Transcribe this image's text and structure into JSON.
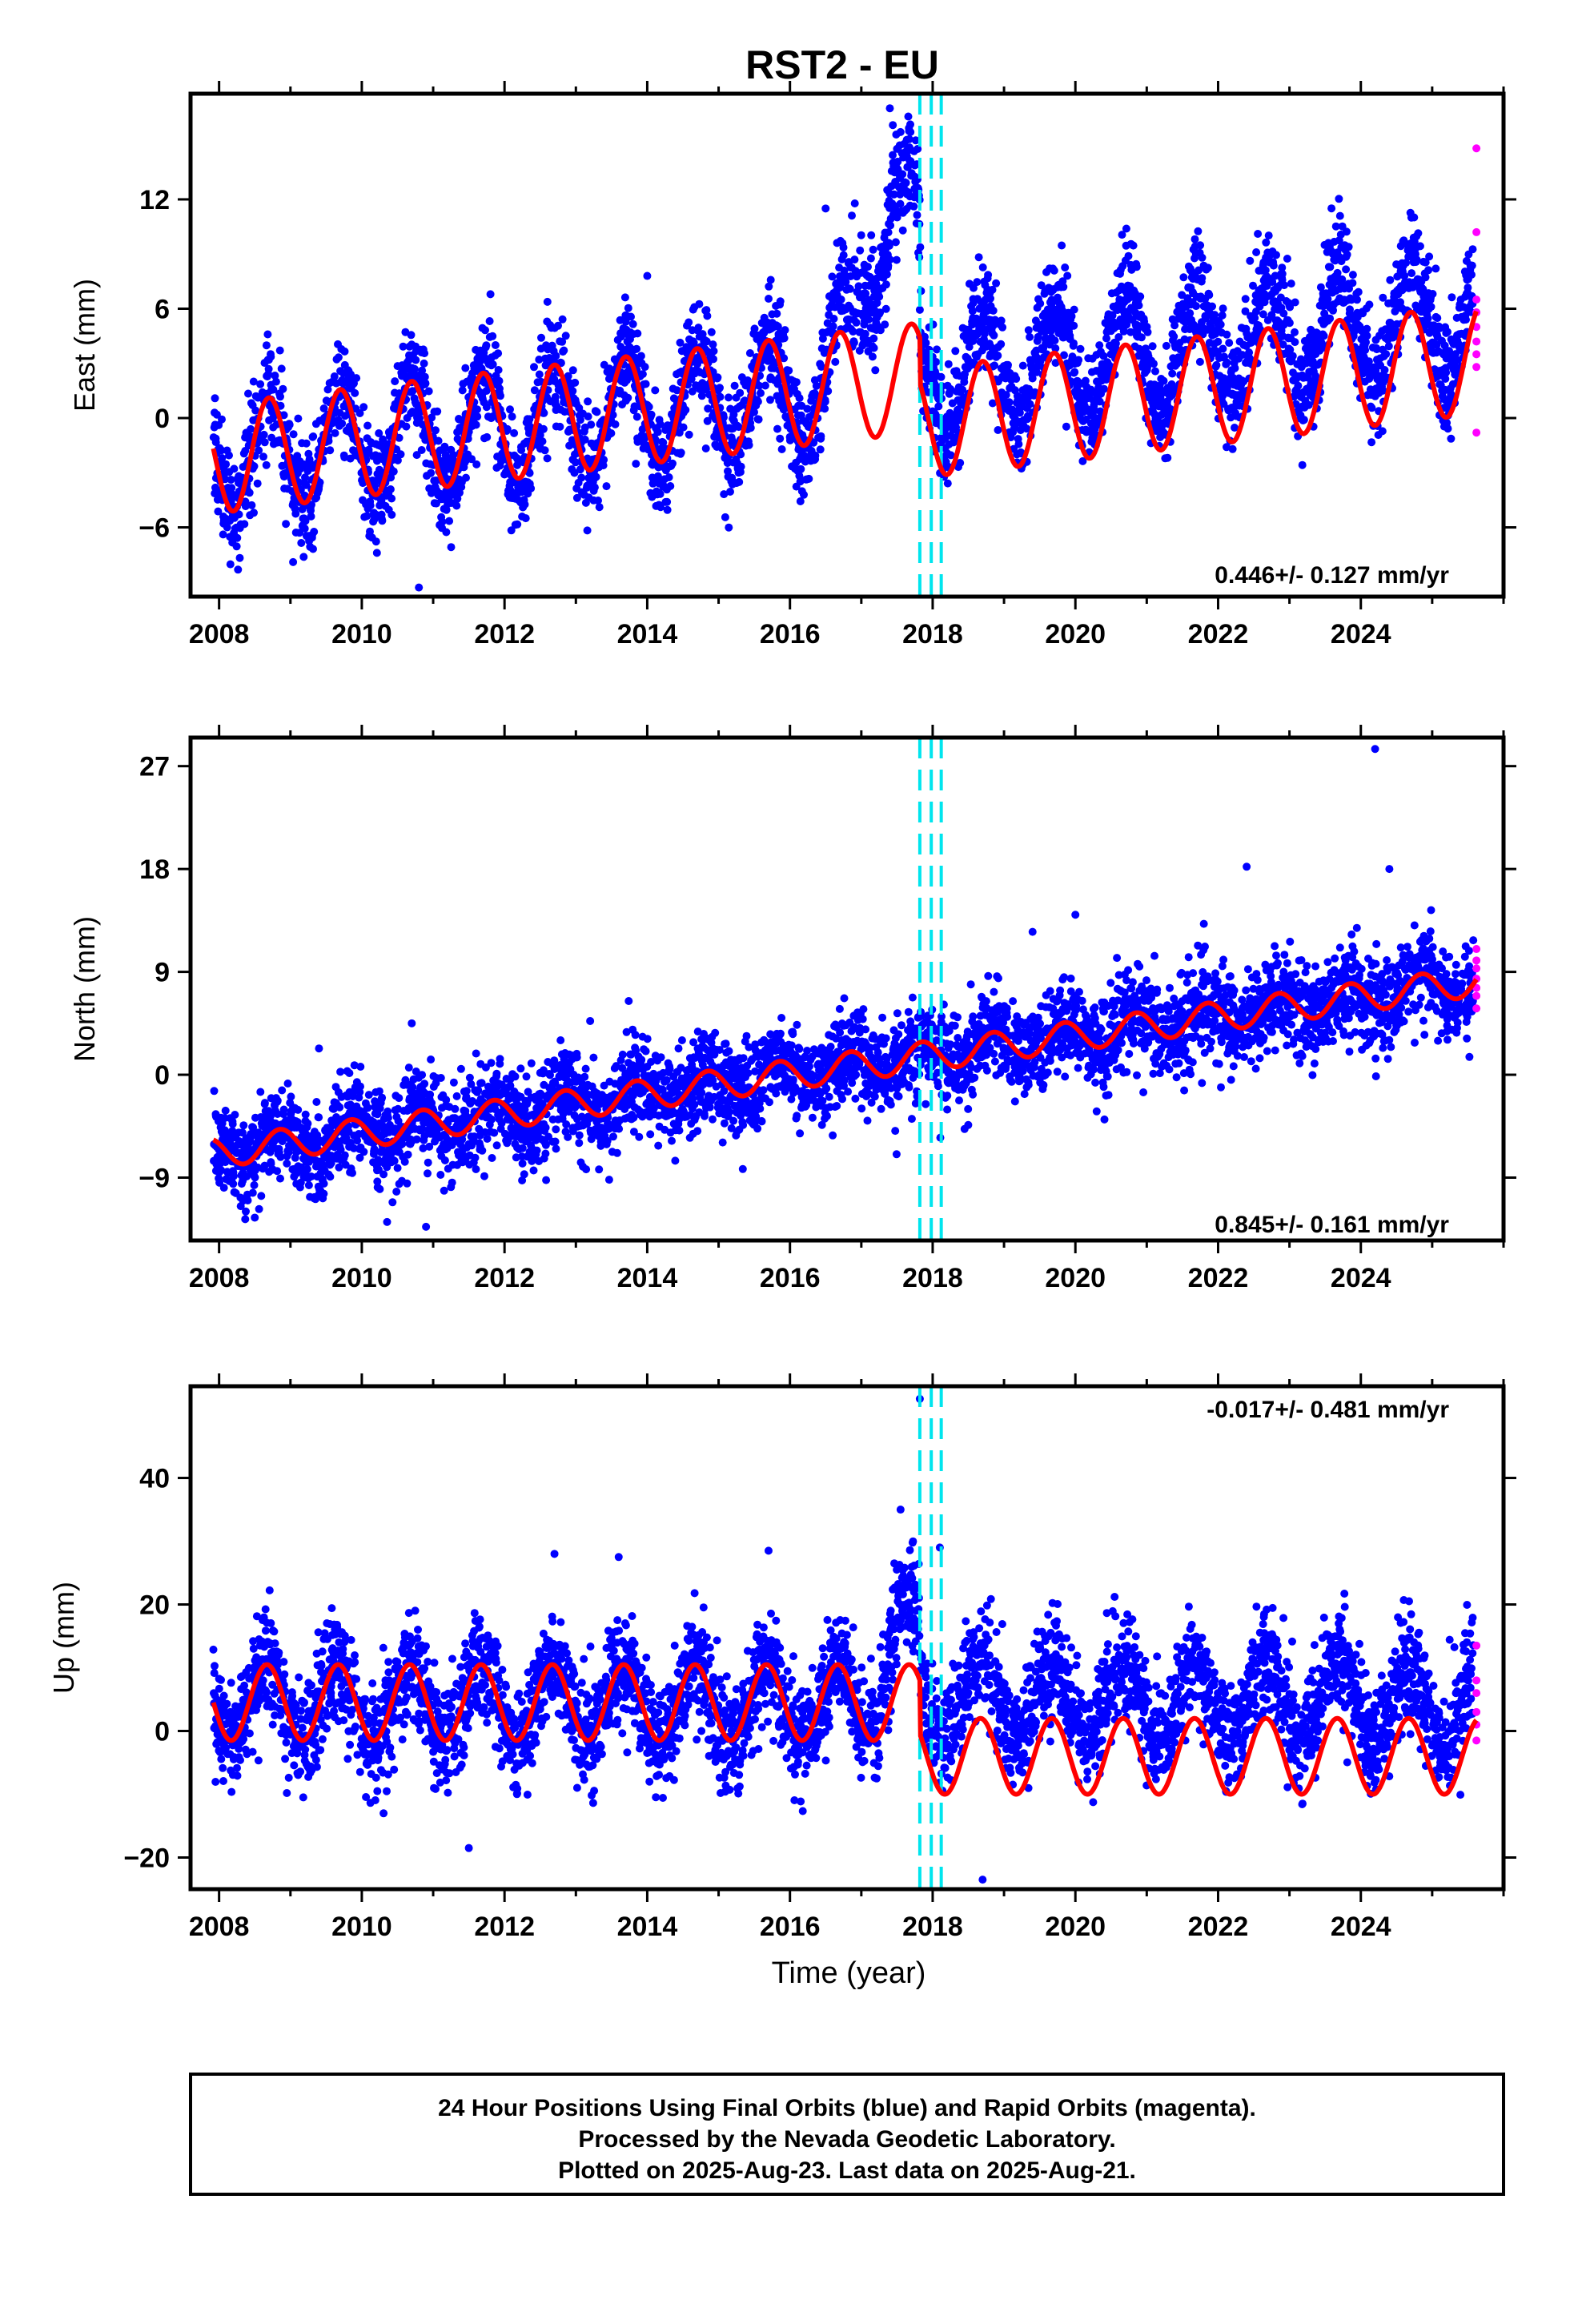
{
  "figure": {
    "title": "RST2 - EU",
    "xlabel": "Time (year)",
    "footer": [
      "24 Hour Positions Using Final Orbits (blue) and Rapid Orbits (magenta).",
      "Processed by the Nevada Geodetic Laboratory.",
      "Plotted on 2025-Aug-23. Last data on 2025-Aug-21."
    ],
    "colors": {
      "final_orbits": "#0000ff",
      "rapid_orbits": "#ff00ff",
      "model_fit": "#ff0000",
      "steps": "#00e5ee"
    }
  },
  "chart_data": [
    {
      "type": "scatter",
      "component": "east",
      "ylabel": "East (mm)",
      "rate_label": "0.446+/- 0.127 mm/yr",
      "xlim": [
        2007.6,
        2026.0
      ],
      "ylim": [
        -9.8,
        17.8
      ],
      "xticks": [
        2008,
        2010,
        2012,
        2014,
        2016,
        2018,
        2020,
        2022,
        2024
      ],
      "xtick_labels": [
        "2008",
        "2010",
        "2012",
        "2014",
        "2016",
        "2018",
        "2020",
        "2022",
        "2024"
      ],
      "yticks": [
        -6,
        0,
        6,
        12
      ],
      "ytick_labels": [
        "−6",
        "0",
        "6",
        "12"
      ],
      "steps": [
        2017.82,
        2017.98,
        2018.12
      ],
      "series": [
        {
          "role": "final_orbits",
          "x_range": [
            2007.92,
            2025.58
          ],
          "trend_start": -2.2,
          "trend_rate": 0.45,
          "annual_amplitude": 3.0,
          "annual_phase": 0.45,
          "scatter_sd": 1.5,
          "anomaly": {
            "x_range": [
              2016.5,
              2017.82
            ],
            "peak_x": 2017.45,
            "peak_add": 10.0
          },
          "outliers": [
            [
              2010.8,
              -9.3
            ],
            [
              2014.0,
              7.8
            ],
            [
              2016.5,
              11.5
            ],
            [
              2017.4,
              17.0
            ],
            [
              2025.05,
              8.2
            ]
          ]
        },
        {
          "role": "rapid_orbits",
          "x": 2025.62,
          "values": [
            14.8,
            10.2,
            6.5,
            5.8,
            5.0,
            4.2,
            3.5,
            2.8,
            -0.8
          ]
        },
        {
          "role": "model_fit",
          "x_range": [
            2007.92,
            2025.62
          ],
          "trend_start": -2.2,
          "trend_rate": 0.45,
          "annual_amplitude": 3.0,
          "annual_phase": 0.45,
          "step_offsets": [
            -2.5,
            0.0,
            0.0
          ]
        }
      ]
    },
    {
      "type": "scatter",
      "component": "north",
      "ylabel": "North (mm)",
      "rate_label": "0.845+/- 0.161 mm/yr",
      "xlim": [
        2007.6,
        2026.0
      ],
      "ylim": [
        -14.5,
        29.5
      ],
      "xticks": [
        2008,
        2010,
        2012,
        2014,
        2016,
        2018,
        2020,
        2022,
        2024
      ],
      "xtick_labels": [
        "2008",
        "2010",
        "2012",
        "2014",
        "2016",
        "2018",
        "2020",
        "2022",
        "2024"
      ],
      "yticks": [
        -9,
        0,
        9,
        18,
        27
      ],
      "ytick_labels": [
        "−9",
        "0",
        "9",
        "18",
        "27"
      ],
      "steps": [
        2017.82,
        2017.98,
        2018.12
      ],
      "series": [
        {
          "role": "final_orbits",
          "x_range": [
            2007.92,
            2025.58
          ],
          "trend_start": -6.8,
          "trend_rate": 0.85,
          "annual_amplitude": 1.3,
          "annual_phase": 0.6,
          "scatter_sd": 2.0,
          "outliers": [
            [
              2008.5,
              -12.5
            ],
            [
              2009.4,
              2.3
            ],
            [
              2010.7,
              4.5
            ],
            [
              2010.9,
              -13.3
            ],
            [
              2013.2,
              4.7
            ],
            [
              2019.4,
              12.5
            ],
            [
              2020.0,
              14.0
            ],
            [
              2021.8,
              13.2
            ],
            [
              2022.4,
              18.2
            ],
            [
              2024.2,
              28.5
            ],
            [
              2024.4,
              18.0
            ]
          ]
        },
        {
          "role": "rapid_orbits",
          "x": 2025.62,
          "values": [
            11.0,
            10.0,
            9.3,
            8.4,
            7.6,
            6.9,
            5.8
          ]
        },
        {
          "role": "model_fit",
          "x_range": [
            2007.92,
            2025.62
          ],
          "trend_start": -6.8,
          "trend_rate": 0.85,
          "annual_amplitude": 1.3,
          "annual_phase": 0.6,
          "step_offsets": [
            0.0,
            0.0,
            0.0
          ]
        }
      ]
    },
    {
      "type": "scatter",
      "component": "up",
      "ylabel": "Up (mm)",
      "rate_label": "-0.017+/- 0.481 mm/yr",
      "xlim": [
        2007.6,
        2026.0
      ],
      "ylim": [
        -25.0,
        54.5
      ],
      "xticks": [
        2008,
        2010,
        2012,
        2014,
        2016,
        2018,
        2020,
        2022,
        2024
      ],
      "xtick_labels": [
        "2008",
        "2010",
        "2012",
        "2014",
        "2016",
        "2018",
        "2020",
        "2022",
        "2024"
      ],
      "yticks": [
        -20,
        0,
        20,
        40
      ],
      "ytick_labels": [
        "−20",
        "0",
        "20",
        "40"
      ],
      "steps": [
        2017.82,
        2017.98,
        2018.12
      ],
      "series": [
        {
          "role": "final_orbits",
          "x_range": [
            2007.92,
            2025.58
          ],
          "trend_start": 4.5,
          "trend_rate": 0.0,
          "annual_amplitude": 6.0,
          "annual_phase": 0.42,
          "scatter_sd": 4.2,
          "anomaly": {
            "x_range": [
              2017.0,
              2017.82
            ],
            "peak_x": 2017.55,
            "peak_add": 12.0
          },
          "outliers": [
            [
              2011.5,
              -18.5
            ],
            [
              2012.7,
              28.0
            ],
            [
              2013.6,
              27.5
            ],
            [
              2015.7,
              28.5
            ],
            [
              2017.55,
              35.0
            ],
            [
              2017.82,
              52.5
            ],
            [
              2018.1,
              29.0
            ],
            [
              2018.7,
              -23.5
            ]
          ]
        },
        {
          "role": "rapid_orbits",
          "x": 2025.62,
          "values": [
            13.5,
            8.0,
            6.0,
            3.0,
            1.0,
            -1.5
          ]
        },
        {
          "role": "model_fit",
          "x_range": [
            2007.92,
            2025.62
          ],
          "trend_start": 4.5,
          "trend_rate": 0.0,
          "annual_amplitude": 6.0,
          "annual_phase": 0.42,
          "step_offsets": [
            -8.5,
            0.0,
            0.0
          ]
        }
      ]
    }
  ]
}
